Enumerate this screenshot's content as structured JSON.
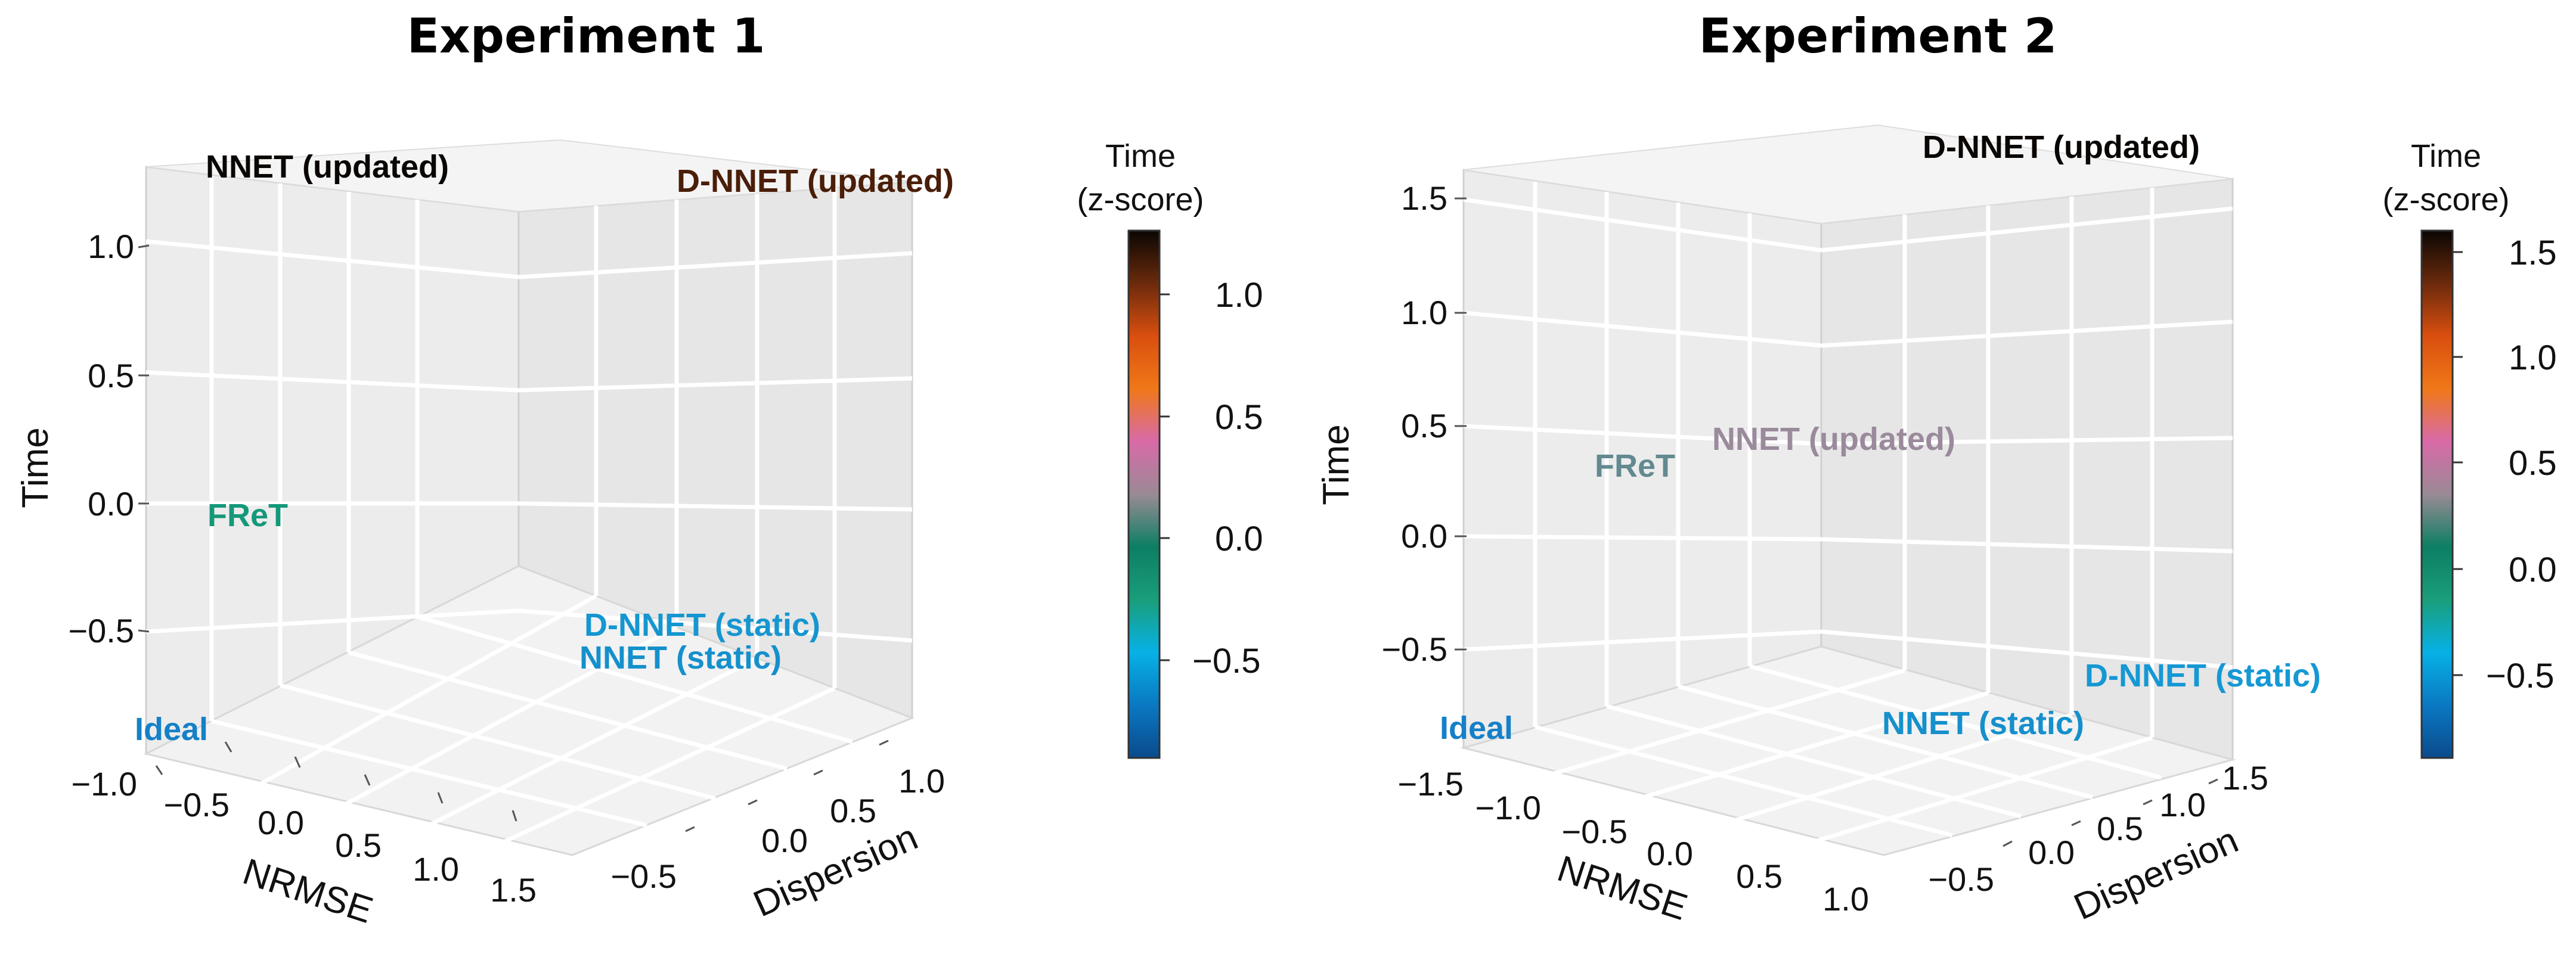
{
  "colors": {
    "colorbar_stops": [
      "#0a4a8c",
      "#0a78c2",
      "#07b1e6",
      "#1a9e7a",
      "#0c7f63",
      "#9a8a95",
      "#d86aa8",
      "#f07818",
      "#d94f0f",
      "#6b2a0c",
      "#0a0603"
    ],
    "pane": "#ebebeb",
    "grid": "#ffffff"
  },
  "chart_data": [
    {
      "type": "scatter3d",
      "title": "Experiment 1",
      "xlabel": "NRMSE",
      "ylabel": "Dispersion",
      "zlabel": "Time",
      "x_ticks": [
        "−1.0",
        "−0.5",
        "0.0",
        "0.5",
        "1.0",
        "1.5"
      ],
      "y_ticks": [
        "−0.5",
        "0.0",
        "0.5",
        "1.0"
      ],
      "z_ticks": [
        "−0.5",
        "0.0",
        "0.5",
        "1.0"
      ],
      "colorbar": {
        "title_line1": "Time",
        "title_line2": "(z-score)",
        "ticks": [
          "1.0",
          "0.5",
          "0.0",
          "−0.5"
        ],
        "range": [
          -0.9,
          1.25
        ]
      },
      "points": [
        {
          "label": "NNET (updated)",
          "x": -1.0,
          "y": 1.3,
          "z": 1.3,
          "color": "#0a0603"
        },
        {
          "label": "D-NNET (updated)",
          "x": 1.5,
          "y": 1.3,
          "z": 1.25,
          "color": "#4a1e08"
        },
        {
          "label": "FReT",
          "x": -0.3,
          "y": 0.5,
          "z": -0.05,
          "color": "#14987a"
        },
        {
          "label": "D-NNET (static)",
          "x": 1.6,
          "y": -0.6,
          "z": -0.6,
          "color": "#1596d0"
        },
        {
          "label": "NNET (static)",
          "x": 1.6,
          "y": -0.7,
          "z": -0.7,
          "color": "#1590cc"
        },
        {
          "label": "Ideal",
          "x": -1.0,
          "y": -0.5,
          "z": -0.8,
          "color": "#1580c8"
        }
      ]
    },
    {
      "type": "scatter3d",
      "title": "Experiment 2",
      "xlabel": "NRMSE",
      "ylabel": "Dispersion",
      "zlabel": "Time",
      "x_ticks": [
        "−1.5",
        "−1.0",
        "−0.5",
        "0.0",
        "0.5",
        "1.0"
      ],
      "y_ticks": [
        "−0.5",
        "0.0",
        "0.5",
        "1.0",
        "1.5"
      ],
      "z_ticks": [
        "−0.5",
        "0.0",
        "0.5",
        "1.0",
        "1.5"
      ],
      "colorbar": {
        "title_line1": "Time",
        "title_line2": "(z-score)",
        "ticks": [
          "1.5",
          "1.0",
          "0.5",
          "0.0",
          "−0.5"
        ],
        "range": [
          -0.8,
          1.65
        ]
      },
      "points": [
        {
          "label": "D-NNET (updated)",
          "x": 1.0,
          "y": 1.5,
          "z": 1.6,
          "color": "#0a0603"
        },
        {
          "label": "NNET (updated)",
          "x": 0.3,
          "y": 0.8,
          "z": 0.4,
          "color": "#9a8a9c"
        },
        {
          "label": "FReT",
          "x": -0.5,
          "y": 0.6,
          "z": 0.3,
          "color": "#628a90"
        },
        {
          "label": "D-NNET (static)",
          "x": 1.1,
          "y": -0.2,
          "z": -0.6,
          "color": "#1598d4"
        },
        {
          "label": "NNET (static)",
          "x": 1.0,
          "y": -0.5,
          "z": -0.7,
          "color": "#1590cc"
        },
        {
          "label": "Ideal",
          "x": -1.5,
          "y": -0.5,
          "z": -0.8,
          "color": "#1580c8"
        }
      ]
    }
  ]
}
